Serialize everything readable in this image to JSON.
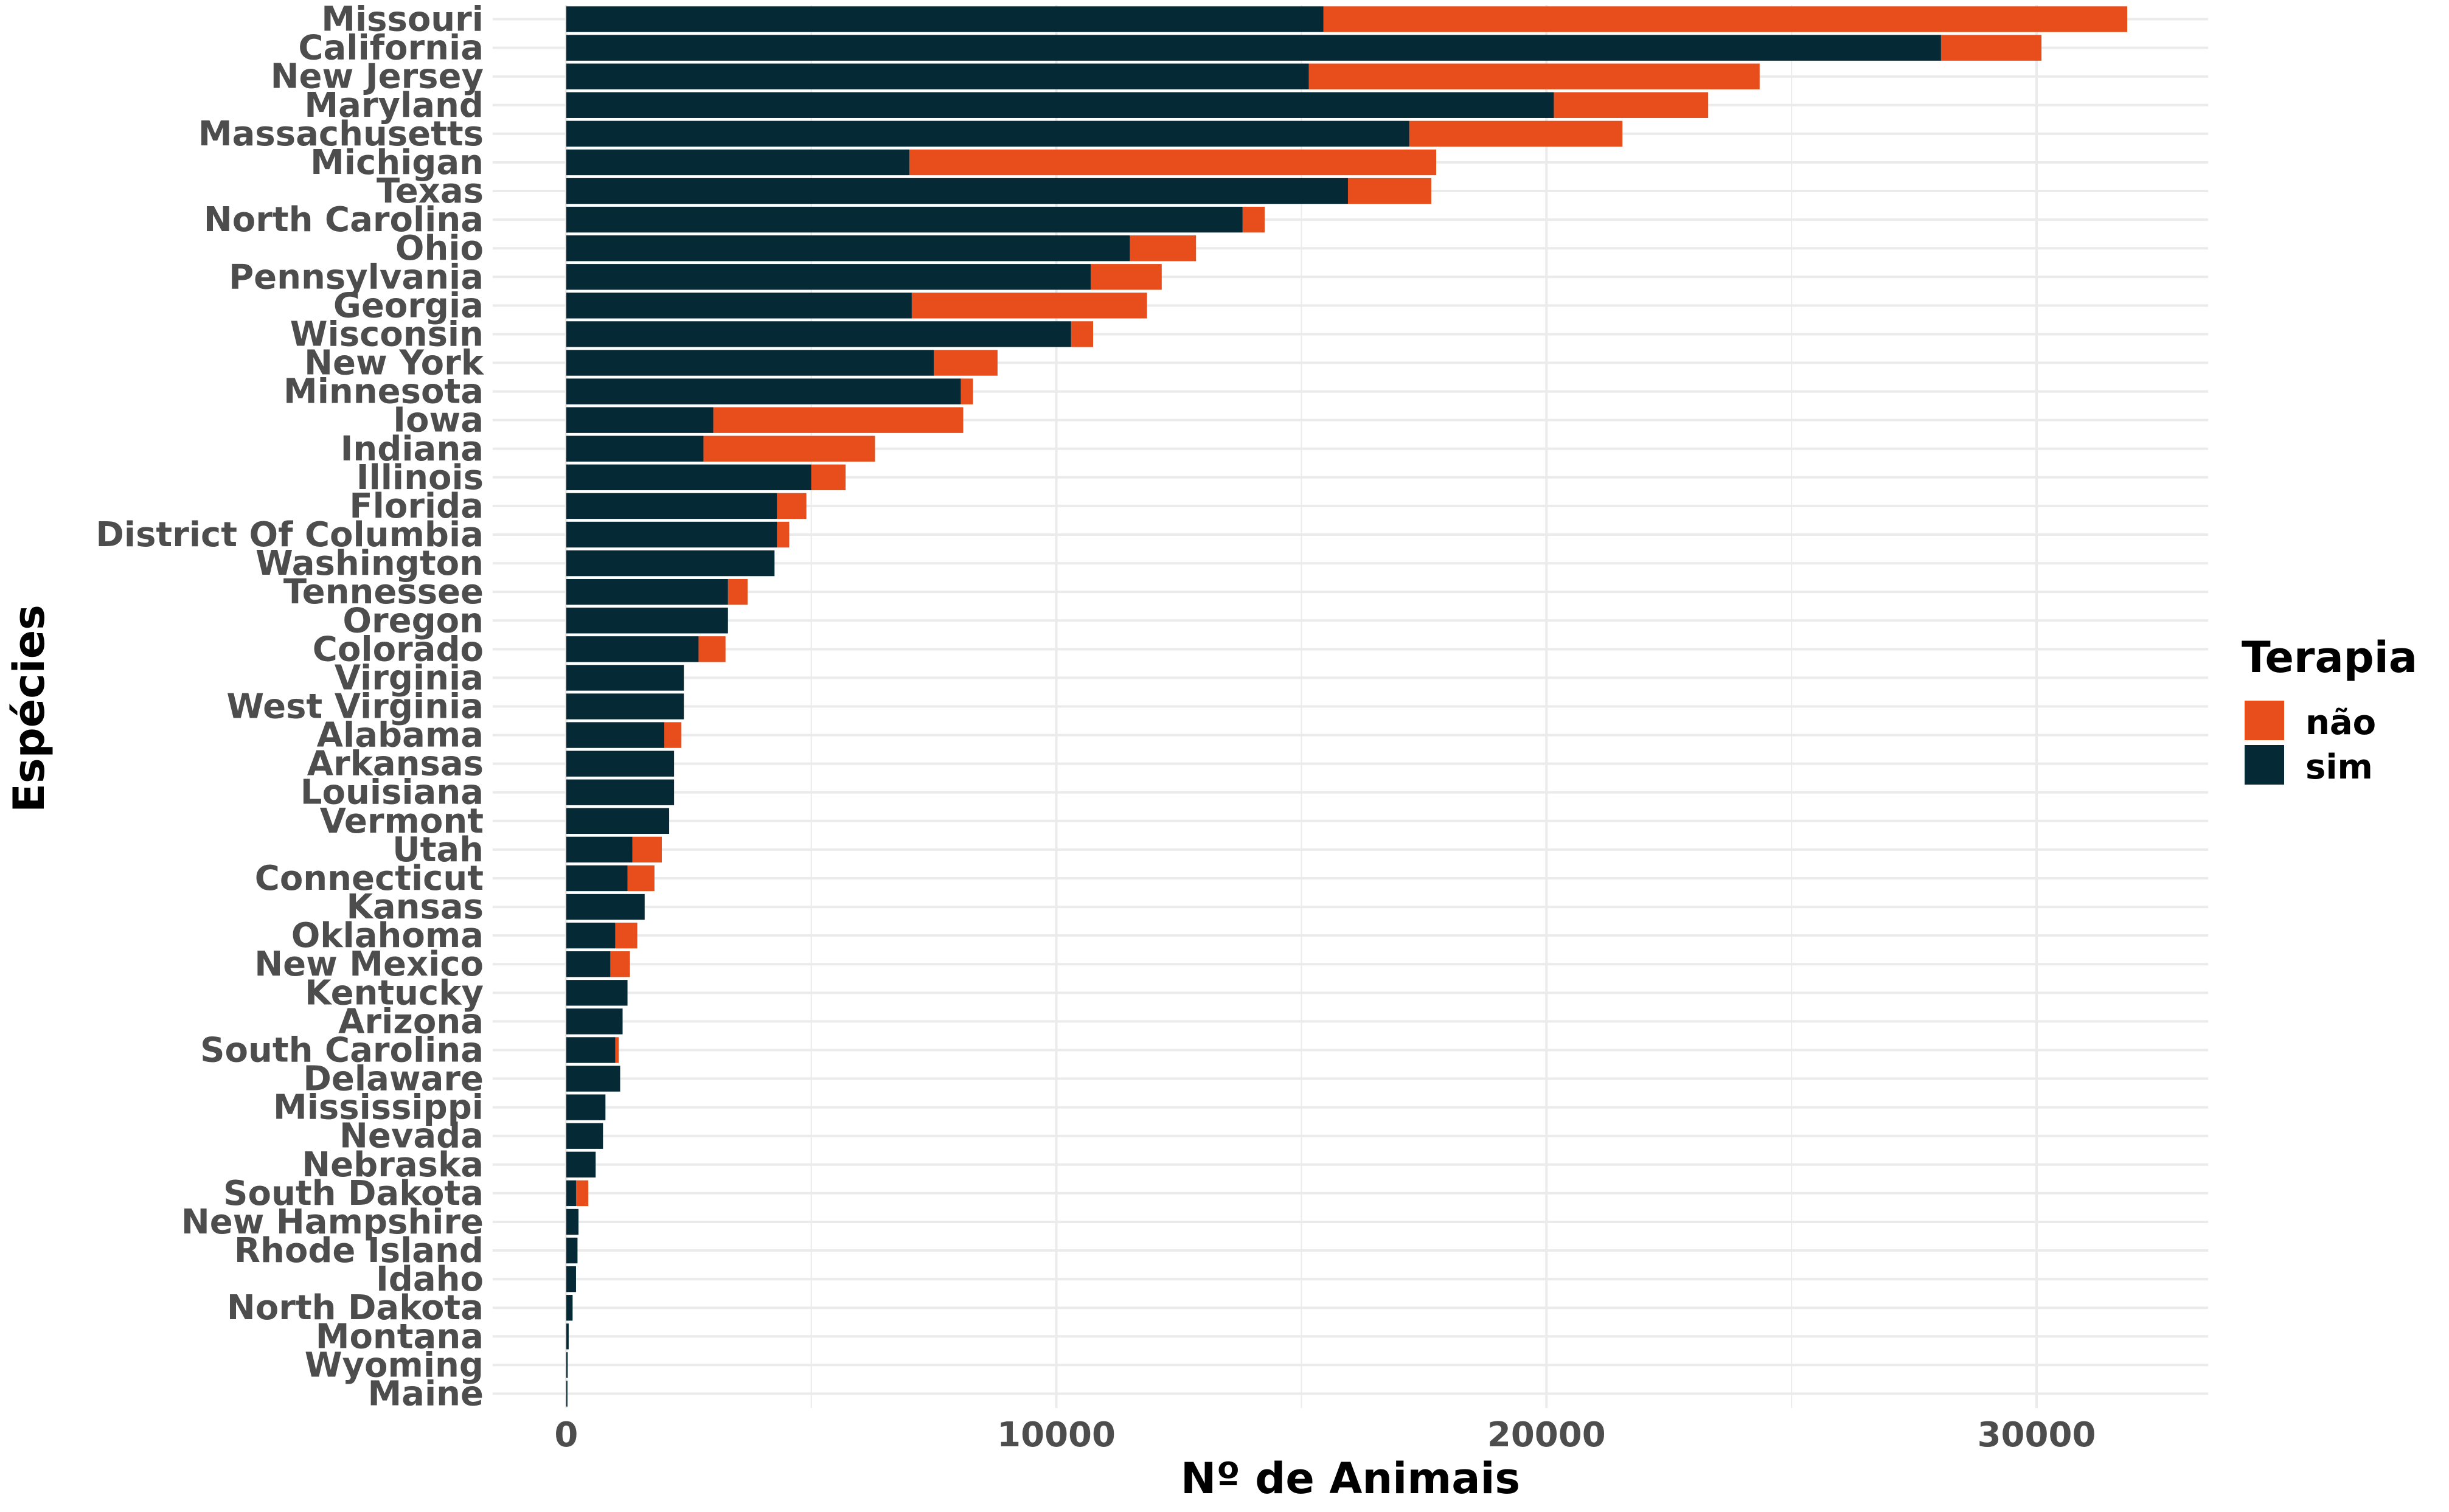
{
  "chart_data": {
    "type": "bar",
    "orientation": "horizontal",
    "stacked": true,
    "title": "",
    "xlabel": "Nº de Animais",
    "ylabel": "Espécies",
    "xlim": [
      -1500,
      33500
    ],
    "xticks": [
      0,
      10000,
      20000,
      30000
    ],
    "xtick_labels": [
      "0",
      "10000",
      "20000",
      "30000"
    ],
    "grid": true,
    "legend": {
      "title": "Terapia",
      "position": "right"
    },
    "categories": [
      "Missouri",
      "California",
      "New Jersey",
      "Maryland",
      "Massachusetts",
      "Michigan",
      "Texas",
      "North Carolina",
      "Ohio",
      "Pennsylvania",
      "Georgia",
      "Wisconsin",
      "New York",
      "Minnesota",
      "Iowa",
      "Indiana",
      "Illinois",
      "Florida",
      "District Of Columbia",
      "Washington",
      "Tennessee",
      "Oregon",
      "Colorado",
      "Virginia",
      "West Virginia",
      "Alabama",
      "Arkansas",
      "Louisiana",
      "Vermont",
      "Utah",
      "Connecticut",
      "Kansas",
      "Oklahoma",
      "New Mexico",
      "Kentucky",
      "Arizona",
      "South Carolina",
      "Delaware",
      "Mississippi",
      "Nevada",
      "Nebraska",
      "South Dakota",
      "New Hampshire",
      "Rhode Island",
      "Idaho",
      "North Dakota",
      "Montana",
      "Wyoming",
      "Maine"
    ],
    "series": [
      {
        "name": "sim",
        "color": "#062a35",
        "values": [
          15450,
          28050,
          15150,
          20150,
          17200,
          7000,
          15950,
          13800,
          11500,
          10700,
          7050,
          10300,
          7500,
          8050,
          3000,
          2800,
          5000,
          4300,
          4300,
          4250,
          3300,
          3300,
          2700,
          2400,
          2400,
          2000,
          2200,
          2200,
          2100,
          1350,
          1250,
          1600,
          1000,
          900,
          1250,
          1150,
          1000,
          1100,
          800,
          750,
          600,
          200,
          250,
          230,
          200,
          130,
          50,
          30,
          10
        ]
      },
      {
        "name": "não",
        "color": "#e84e1b",
        "values": [
          16400,
          2050,
          9200,
          3150,
          4350,
          10750,
          1700,
          450,
          1350,
          1450,
          4800,
          450,
          1300,
          250,
          5100,
          3500,
          700,
          600,
          250,
          0,
          400,
          0,
          550,
          0,
          0,
          350,
          0,
          0,
          0,
          600,
          550,
          0,
          450,
          400,
          0,
          0,
          70,
          0,
          0,
          0,
          0,
          250,
          0,
          0,
          0,
          0,
          0,
          0,
          0
        ]
      }
    ]
  }
}
